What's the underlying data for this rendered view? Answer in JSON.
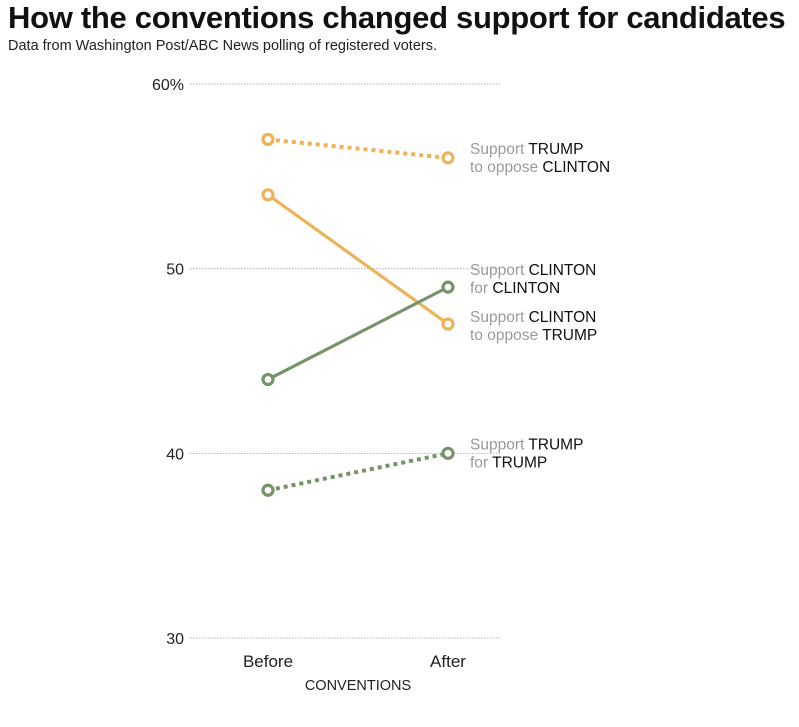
{
  "chart_data": {
    "type": "line",
    "title": "How the conventions changed support for candidates",
    "subtitle": "Data from Washington Post/ABC News polling of registered voters.",
    "xlabel": "CONVENTIONS",
    "ylabel": "",
    "categories": [
      "Before",
      "After"
    ],
    "ylim": [
      30,
      60
    ],
    "yticks": [
      {
        "value": 60,
        "label": "60%"
      },
      {
        "value": 50,
        "label": "50"
      },
      {
        "value": 40,
        "label": "40"
      },
      {
        "value": 30,
        "label": "30"
      }
    ],
    "grid": true,
    "series": [
      {
        "name": "Support TRUMP to oppose CLINTON",
        "values": [
          57,
          56
        ],
        "color": "#EDB35A",
        "style": "dotted",
        "label_parts": [
          [
            {
              "text": "Support ",
              "tone": "gray"
            },
            {
              "text": "TRUMP",
              "tone": "dark"
            }
          ],
          [
            {
              "text": "to oppose ",
              "tone": "gray"
            },
            {
              "text": "CLINTON",
              "tone": "dark"
            }
          ]
        ]
      },
      {
        "name": "Support CLINTON to oppose TRUMP",
        "values": [
          54,
          47
        ],
        "color": "#EDB35A",
        "style": "solid",
        "label_parts": [
          [
            {
              "text": "Support ",
              "tone": "gray"
            },
            {
              "text": "CLINTON",
              "tone": "dark"
            }
          ],
          [
            {
              "text": "to oppose ",
              "tone": "gray"
            },
            {
              "text": "TRUMP",
              "tone": "dark"
            }
          ]
        ]
      },
      {
        "name": "Support CLINTON for CLINTON",
        "values": [
          44,
          49
        ],
        "color": "#76936A",
        "style": "solid",
        "label_parts": [
          [
            {
              "text": "Support ",
              "tone": "gray"
            },
            {
              "text": "CLINTON",
              "tone": "dark"
            }
          ],
          [
            {
              "text": "for ",
              "tone": "gray"
            },
            {
              "text": "CLINTON",
              "tone": "dark"
            }
          ]
        ]
      },
      {
        "name": "Support TRUMP for TRUMP",
        "values": [
          38,
          40
        ],
        "color": "#76936A",
        "style": "dotted",
        "label_parts": [
          [
            {
              "text": "Support ",
              "tone": "gray"
            },
            {
              "text": "TRUMP",
              "tone": "dark"
            }
          ],
          [
            {
              "text": "for ",
              "tone": "gray"
            },
            {
              "text": "TRUMP",
              "tone": "dark"
            }
          ]
        ]
      }
    ]
  }
}
